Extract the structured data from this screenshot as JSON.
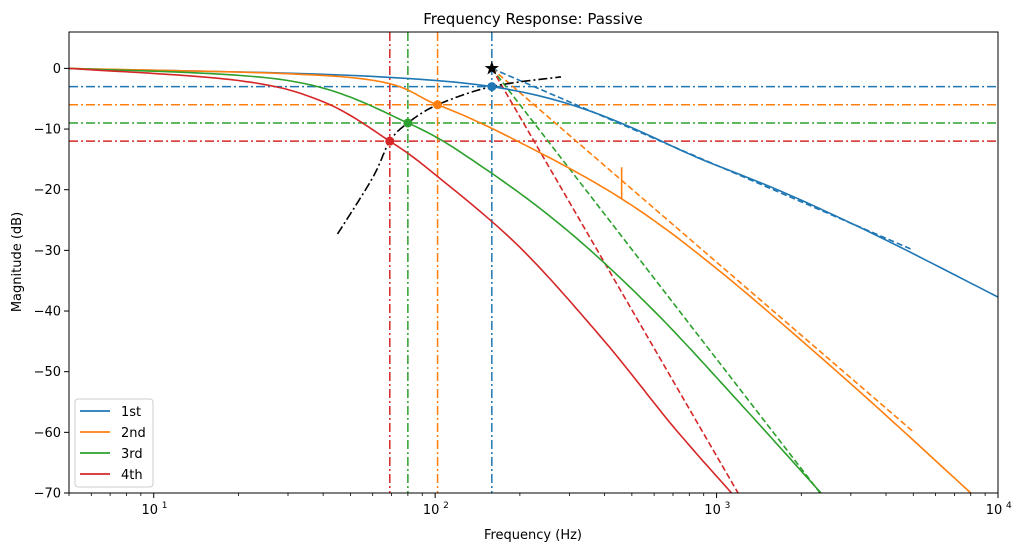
{
  "chart_data": {
    "type": "line",
    "title": "Frequency Response: Passive",
    "xlabel": "Frequency (Hz)",
    "ylabel": "Magnitude (dB)",
    "xscale": "log",
    "xlim": [
      5,
      10000
    ],
    "ylim": [
      -70,
      6
    ],
    "grid": false,
    "legend_position": "lower-left",
    "x_tick_labels": [
      {
        "value": 10,
        "base": "10",
        "exp": "1"
      },
      {
        "value": 100,
        "base": "10",
        "exp": "2"
      },
      {
        "value": 1000,
        "base": "10",
        "exp": "3"
      },
      {
        "value": 10000,
        "base": "10",
        "exp": "4"
      }
    ],
    "y_ticks": [
      0,
      -10,
      -20,
      -30,
      -40,
      -50,
      -60,
      -70
    ],
    "y_tick_labels": [
      "0",
      "−10",
      "−20",
      "−30",
      "−40",
      "−50",
      "−60",
      "−70"
    ],
    "cutoff_frequency": 159,
    "series": [
      {
        "name": "1st",
        "order": 1,
        "color": "#1f77b4",
        "corner_hz": 159,
        "marker_db": -3,
        "asymptote_end_hz": 5000
      },
      {
        "name": "2nd",
        "order": 2,
        "color": "#ff7f0e",
        "corner_hz": 159,
        "marker_hz": 102,
        "marker_db": -6,
        "asymptote_end_hz": 5000
      },
      {
        "name": "3rd",
        "order": 3,
        "color": "#2ca02c",
        "corner_hz": 159,
        "marker_hz": 80,
        "marker_db": -9,
        "asymptote_end_hz": 2400
      },
      {
        "name": "4th",
        "order": 4,
        "color": "#d62728",
        "corner_hz": 159,
        "marker_hz": 69,
        "marker_db": -12,
        "asymptote_end_hz": 1300
      }
    ],
    "horizontal_reference_lines_db": [
      -3,
      -6,
      -9,
      -12
    ],
    "vertical_reference_lines_hz": [
      159,
      102,
      80,
      69
    ],
    "locus_curve": {
      "color": "#000000",
      "style": "dash-dot",
      "x_range_hz": [
        45,
        280
      ]
    },
    "star_marker": {
      "x_hz": 159,
      "y_db": 0
    }
  }
}
